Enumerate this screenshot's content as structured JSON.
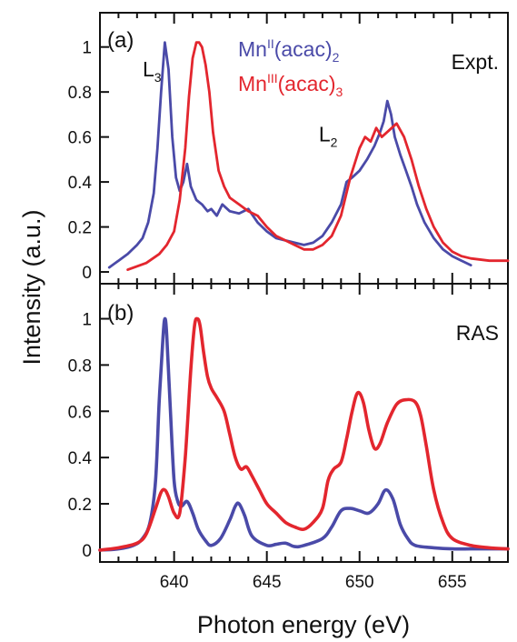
{
  "colors": {
    "blue": "#4a4aa8",
    "red": "#e3262e",
    "axis": "#111111"
  },
  "chart_data": [
    {
      "type": "line",
      "panel": "(a)",
      "annotation": "Expt.",
      "ylim": [
        -0.02,
        1.12
      ],
      "xlim": [
        636,
        658
      ],
      "yticks": [
        0,
        0.2,
        0.4,
        0.6,
        0.8,
        1
      ],
      "ytick_labels": [
        "0",
        "0.2",
        "0.4",
        "0.6",
        "0.8",
        "1"
      ],
      "legend": {
        "placement": "top-center"
      },
      "peak_labels": [
        {
          "main": "L",
          "sub": "3",
          "x": 638.3,
          "y": 0.87
        },
        {
          "main": "L",
          "sub": "2",
          "x": 647.8,
          "y": 0.58
        }
      ],
      "series": [
        {
          "name": "Mn",
          "name_sup": "II",
          "name_rest": "(acac)",
          "name_sub": "2",
          "color": "blue",
          "x": [
            636.5,
            637,
            637.5,
            638,
            638.3,
            638.6,
            638.9,
            639.1,
            639.3,
            639.5,
            639.7,
            639.9,
            640.1,
            640.3,
            640.5,
            640.7,
            640.9,
            641.2,
            641.5,
            641.8,
            642,
            642.3,
            642.6,
            643,
            643.5,
            644,
            644.5,
            645,
            645.5,
            646,
            646.5,
            647,
            647.5,
            648,
            648.5,
            649,
            649.3,
            649.6,
            650,
            650.4,
            650.8,
            651.1,
            651.3,
            651.5,
            651.7,
            651.9,
            652.2,
            652.5,
            652.8,
            653.1,
            653.5,
            654,
            654.5,
            655,
            655.5,
            656
          ],
          "y": [
            0.02,
            0.05,
            0.08,
            0.12,
            0.15,
            0.22,
            0.35,
            0.55,
            0.8,
            1.02,
            0.9,
            0.6,
            0.42,
            0.36,
            0.4,
            0.48,
            0.38,
            0.32,
            0.3,
            0.27,
            0.28,
            0.25,
            0.3,
            0.27,
            0.26,
            0.28,
            0.22,
            0.18,
            0.15,
            0.14,
            0.13,
            0.12,
            0.13,
            0.16,
            0.22,
            0.3,
            0.4,
            0.42,
            0.45,
            0.5,
            0.56,
            0.62,
            0.67,
            0.76,
            0.7,
            0.6,
            0.52,
            0.45,
            0.38,
            0.3,
            0.22,
            0.15,
            0.1,
            0.07,
            0.05,
            0.03
          ]
        },
        {
          "name": "Mn",
          "name_sup": "III",
          "name_rest": "(acac)",
          "name_sub": "3",
          "color": "red",
          "x": [
            637.5,
            638.5,
            639.2,
            639.6,
            640,
            640.3,
            640.6,
            640.8,
            641,
            641.2,
            641.35,
            641.5,
            641.7,
            641.9,
            642.1,
            642.4,
            642.7,
            643,
            643.5,
            644,
            644.5,
            645,
            645.5,
            646,
            646.5,
            647,
            647.5,
            648,
            648.5,
            649,
            649.5,
            650,
            650.3,
            650.6,
            650.9,
            651.2,
            651.6,
            652,
            652.4,
            652.8,
            653.2,
            653.6,
            654,
            654.5,
            655,
            655.5,
            656,
            657,
            658
          ],
          "y": [
            0.01,
            0.04,
            0.08,
            0.12,
            0.18,
            0.32,
            0.55,
            0.78,
            0.95,
            1.02,
            1.02,
            1.0,
            0.92,
            0.8,
            0.62,
            0.45,
            0.38,
            0.33,
            0.3,
            0.27,
            0.25,
            0.2,
            0.16,
            0.14,
            0.12,
            0.1,
            0.1,
            0.12,
            0.16,
            0.25,
            0.42,
            0.55,
            0.6,
            0.58,
            0.64,
            0.6,
            0.63,
            0.66,
            0.6,
            0.5,
            0.38,
            0.28,
            0.2,
            0.13,
            0.09,
            0.07,
            0.06,
            0.05,
            0.05
          ]
        }
      ]
    },
    {
      "type": "line",
      "panel": "(b)",
      "annotation": "RAS",
      "ylim": [
        -0.02,
        1.12
      ],
      "xlim": [
        636,
        658
      ],
      "yticks": [
        0,
        0.2,
        0.4,
        0.6,
        0.8,
        1
      ],
      "ytick_labels": [
        "0",
        "0.2",
        "0.4",
        "0.6",
        "0.8",
        "1"
      ],
      "series": [
        {
          "color": "blue",
          "x": [
            636,
            637,
            637.8,
            638.3,
            638.7,
            639,
            639.2,
            639.4,
            639.5,
            639.6,
            639.8,
            640,
            640.2,
            640.4,
            640.7,
            641,
            641.3,
            641.7,
            642,
            642.5,
            643,
            643.3,
            643.5,
            643.8,
            644.2,
            645,
            645.5,
            646,
            646.5,
            647,
            648,
            648.5,
            649,
            649.5,
            650,
            650.5,
            651,
            651.4,
            651.8,
            652.2,
            652.6,
            653,
            654,
            655,
            656,
            657,
            658
          ],
          "y": [
            0,
            0.005,
            0.02,
            0.05,
            0.12,
            0.3,
            0.65,
            0.92,
            1.0,
            0.93,
            0.6,
            0.3,
            0.21,
            0.19,
            0.21,
            0.16,
            0.09,
            0.04,
            0.02,
            0.05,
            0.13,
            0.19,
            0.2,
            0.15,
            0.06,
            0.02,
            0.025,
            0.03,
            0.015,
            0.02,
            0.05,
            0.1,
            0.17,
            0.18,
            0.17,
            0.16,
            0.2,
            0.26,
            0.22,
            0.11,
            0.05,
            0.02,
            0.01,
            0.005,
            0.005,
            0.005,
            0.005
          ],
          "smooth": true
        },
        {
          "color": "red",
          "x": [
            636,
            637,
            638,
            638.5,
            639,
            639.3,
            639.5,
            639.7,
            640,
            640.3,
            640.6,
            640.9,
            641.1,
            641.25,
            641.4,
            641.6,
            641.8,
            642,
            642.3,
            642.7,
            643,
            643.3,
            643.6,
            643.9,
            644.2,
            644.6,
            645,
            645.5,
            646,
            646.5,
            647,
            647.5,
            648,
            648.3,
            648.6,
            649,
            649.3,
            649.6,
            649.9,
            650.2,
            650.5,
            650.8,
            651.1,
            651.5,
            652,
            652.5,
            653,
            653.3,
            653.6,
            654,
            654.5,
            655,
            656,
            657,
            658
          ],
          "y": [
            0,
            0.01,
            0.03,
            0.07,
            0.18,
            0.25,
            0.26,
            0.23,
            0.16,
            0.16,
            0.4,
            0.78,
            0.97,
            1.0,
            0.97,
            0.85,
            0.75,
            0.7,
            0.66,
            0.6,
            0.5,
            0.4,
            0.35,
            0.36,
            0.32,
            0.26,
            0.2,
            0.16,
            0.12,
            0.1,
            0.09,
            0.12,
            0.18,
            0.3,
            0.35,
            0.38,
            0.48,
            0.6,
            0.68,
            0.64,
            0.52,
            0.44,
            0.46,
            0.55,
            0.63,
            0.65,
            0.64,
            0.58,
            0.45,
            0.26,
            0.12,
            0.05,
            0.02,
            0.01,
            0.005
          ],
          "smooth": true
        }
      ]
    }
  ],
  "x_axis": {
    "label": "Photon energy (eV)",
    "ticks": [
      640,
      645,
      650,
      655
    ],
    "tick_labels": [
      "640",
      "645",
      "650",
      "655"
    ]
  },
  "y_axis": {
    "label": "Intensity (a.u.)"
  }
}
